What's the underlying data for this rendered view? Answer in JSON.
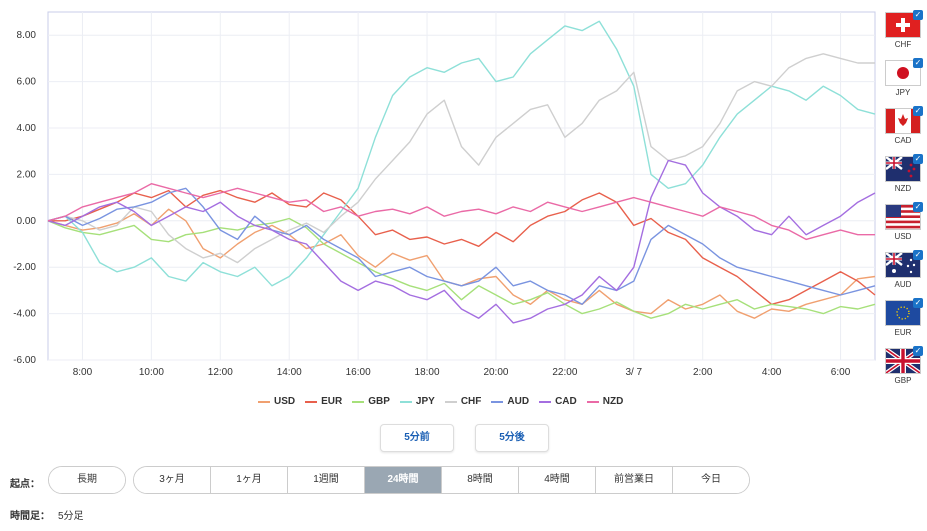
{
  "chart_data": {
    "type": "line",
    "ylim": [
      -6,
      9
    ],
    "yticks": [
      "8.00",
      "6.00",
      "4.00",
      "2.00",
      "0.00",
      "-2.00",
      "-4.00",
      "-6.00"
    ],
    "ytick_values": [
      8,
      6,
      4,
      2,
      0,
      -2,
      -4,
      -6
    ],
    "xticks": [
      "8:00",
      "10:00",
      "12:00",
      "14:00",
      "16:00",
      "18:00",
      "20:00",
      "22:00",
      "3/ 7",
      "2:00",
      "4:00",
      "6:00"
    ],
    "xtick_hours": [
      1,
      3,
      5,
      7,
      9,
      11,
      13,
      15,
      17,
      19,
      21,
      23
    ],
    "x_range_hours": [
      0,
      24
    ],
    "series": [
      {
        "name": "USD",
        "color": "#f0a070",
        "values": [
          0,
          -0.2,
          -0.4,
          -0.3,
          -0.1,
          0.3,
          -0.2,
          0.5,
          0,
          -1.2,
          -1.6,
          -1.0,
          -0.5,
          -0.2,
          -0.6,
          -1.2,
          -1.0,
          -0.6,
          -1.5,
          -2.0,
          -1.4,
          -1.7,
          -1.5,
          -2.6,
          -2.8,
          -2.5,
          -2.4,
          -3.2,
          -3.6,
          -3.0,
          -3.4,
          -3.6,
          -3.0,
          -3.6,
          -3.9,
          -4.0,
          -3.4,
          -3.8,
          -3.6,
          -3.2,
          -3.9,
          -4.2,
          -3.8,
          -3.9,
          -3.6,
          -3.4,
          -3.2,
          -2.5,
          -2.4
        ]
      },
      {
        "name": "EUR",
        "color": "#e8604c",
        "values": [
          0,
          0,
          0.2,
          0.5,
          0.8,
          1.2,
          1.0,
          1.3,
          0.6,
          1.1,
          1.3,
          1.0,
          0.8,
          1.2,
          0.7,
          0.6,
          1.2,
          0.9,
          0.2,
          -0.6,
          -0.4,
          -0.8,
          -0.7,
          -1.0,
          -0.8,
          -1.1,
          -0.5,
          -0.9,
          -0.2,
          0.2,
          0.4,
          0.9,
          1.2,
          0.8,
          -0.2,
          0.1,
          -0.5,
          -0.8,
          -1.6,
          -2.0,
          -2.4,
          -3.0,
          -3.6,
          -3.4,
          -3.0,
          -2.6,
          -2.2,
          -2.6,
          -3.2
        ]
      },
      {
        "name": "GBP",
        "color": "#a6e07a",
        "values": [
          0,
          -0.3,
          -0.5,
          -0.6,
          -0.4,
          -0.2,
          -0.8,
          -0.9,
          -0.6,
          -0.5,
          -0.3,
          -0.4,
          -0.2,
          -0.1,
          0.1,
          -0.3,
          -1.0,
          -1.4,
          -1.8,
          -2.2,
          -2.5,
          -2.8,
          -3.0,
          -2.7,
          -3.4,
          -2.8,
          -3.2,
          -3.6,
          -3.4,
          -3.1,
          -3.6,
          -4.0,
          -3.8,
          -3.5,
          -3.9,
          -4.2,
          -4.0,
          -3.6,
          -3.8,
          -3.6,
          -3.4,
          -3.8,
          -3.6,
          -3.7,
          -3.8,
          -4.0,
          -3.7,
          -3.8,
          -3.6
        ]
      },
      {
        "name": "JPY",
        "color": "#8ee0d8",
        "values": [
          0,
          0.2,
          -0.5,
          -1.8,
          -2.2,
          -2.0,
          -1.6,
          -2.4,
          -2.6,
          -1.8,
          -2.2,
          -2.4,
          -2.0,
          -2.8,
          -2.4,
          -1.6,
          -0.6,
          0.4,
          1.4,
          3.6,
          5.4,
          6.2,
          6.6,
          6.4,
          6.8,
          7.0,
          6.0,
          6.2,
          7.2,
          7.8,
          8.4,
          8.2,
          8.6,
          7.4,
          5.8,
          2.0,
          1.4,
          1.6,
          2.4,
          3.6,
          4.6,
          5.2,
          5.8,
          5.6,
          5.2,
          5.8,
          5.4,
          4.8,
          4.6
        ]
      },
      {
        "name": "CHF",
        "color": "#cfcfcf",
        "values": [
          0,
          0.2,
          0,
          -0.4,
          -0.2,
          0.6,
          0.4,
          -0.6,
          -1.2,
          -1.6,
          -1.4,
          -1.8,
          -1.2,
          -0.8,
          -0.4,
          -0.1,
          -0.5,
          0.2,
          0.8,
          1.8,
          2.6,
          3.4,
          4.6,
          5.2,
          3.2,
          2.4,
          3.6,
          4.2,
          4.8,
          5.0,
          3.6,
          4.2,
          5.2,
          5.6,
          6.4,
          3.2,
          2.6,
          2.8,
          3.2,
          4.2,
          5.6,
          6.0,
          5.8,
          6.6,
          7.0,
          7.2,
          7.0,
          6.8,
          6.8
        ]
      },
      {
        "name": "AUD",
        "color": "#7a94e0",
        "values": [
          0,
          0.2,
          -0.2,
          0.1,
          0.5,
          0.6,
          0.8,
          1.2,
          1.4,
          0.6,
          -0.4,
          -0.8,
          0.2,
          -0.4,
          -0.6,
          -0.2,
          -0.8,
          -1.2,
          -1.6,
          -2.4,
          -2.2,
          -2.0,
          -2.4,
          -2.6,
          -2.8,
          -2.6,
          -2.0,
          -2.8,
          -2.6,
          -3.0,
          -3.2,
          -3.6,
          -2.8,
          -3.0,
          -2.6,
          -0.8,
          -0.2,
          -0.6,
          -1.0,
          -1.6,
          -2.0,
          -2.2,
          -2.4,
          -2.6,
          -2.8,
          -3.0,
          -3.2,
          -3.0,
          -2.8
        ]
      },
      {
        "name": "CAD",
        "color": "#a46ee0",
        "values": [
          0,
          -0.2,
          0.2,
          0.6,
          0.8,
          0.4,
          -0.2,
          0.2,
          0.6,
          0.4,
          0.8,
          0.2,
          -0.2,
          -0.4,
          -0.8,
          -1.0,
          -1.8,
          -2.6,
          -3.0,
          -2.6,
          -2.8,
          -3.2,
          -3.4,
          -3.0,
          -3.8,
          -4.2,
          -3.6,
          -4.4,
          -4.2,
          -3.8,
          -3.6,
          -3.2,
          -2.4,
          -3.0,
          -2.0,
          1.0,
          2.6,
          2.4,
          1.2,
          0.6,
          0.2,
          -0.4,
          -0.6,
          0.2,
          -0.6,
          -0.2,
          0.2,
          0.8,
          1.2
        ]
      },
      {
        "name": "NZD",
        "color": "#ea6aa6",
        "values": [
          0,
          0.2,
          0.6,
          0.8,
          1.0,
          1.2,
          1.6,
          1.4,
          1.2,
          1.0,
          1.2,
          1.4,
          1.2,
          1.0,
          0.8,
          0.9,
          0.4,
          0.6,
          0.2,
          0.4,
          0.5,
          0.3,
          0.6,
          0.2,
          0.4,
          0.5,
          0.3,
          0.6,
          0.4,
          0.8,
          0.6,
          0.4,
          0.6,
          0.8,
          1.0,
          0.8,
          0.6,
          0.4,
          0.2,
          0.6,
          0.4,
          0.2,
          -0.2,
          -0.4,
          -0.8,
          -0.6,
          -0.4,
          -0.6,
          -0.6
        ]
      }
    ]
  },
  "currency_flags": [
    {
      "code": "CHF",
      "icon": "swiss-flag-icon"
    },
    {
      "code": "JPY",
      "icon": "japan-flag-icon"
    },
    {
      "code": "CAD",
      "icon": "canada-flag-icon"
    },
    {
      "code": "NZD",
      "icon": "new-zealand-flag-icon"
    },
    {
      "code": "USD",
      "icon": "usa-flag-icon"
    },
    {
      "code": "AUD",
      "icon": "australia-flag-icon"
    },
    {
      "code": "EUR",
      "icon": "eu-flag-icon"
    },
    {
      "code": "GBP",
      "icon": "uk-flag-icon"
    }
  ],
  "buttons": {
    "prev": "5分前",
    "next": "5分後"
  },
  "origin": {
    "label": "起点：",
    "options_left": [
      "長期"
    ],
    "options_right": [
      "3ヶ月",
      "1ヶ月",
      "1週間",
      "24時間",
      "8時間",
      "4時間",
      "前営業日",
      "今日"
    ],
    "active": "24時間"
  },
  "footer": {
    "label": "時間足：",
    "value": "5分足"
  }
}
